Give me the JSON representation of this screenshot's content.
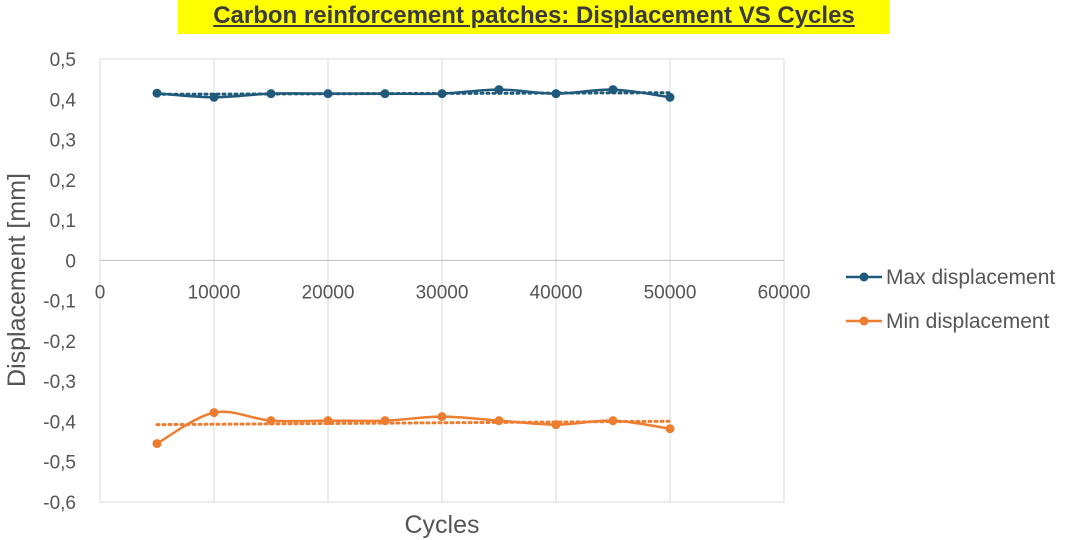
{
  "chart_data": {
    "type": "line",
    "title": "Carbon reinforcement patches: Displacement VS Cycles",
    "xlabel": "Cycles",
    "ylabel": "Displacement [mm]",
    "xlim": [
      0,
      60000
    ],
    "ylim": [
      -0.6,
      0.5
    ],
    "x_ticks": [
      0,
      10000,
      20000,
      30000,
      40000,
      50000,
      60000
    ],
    "y_ticks": [
      0.5,
      0.4,
      0.3,
      0.2,
      0.1,
      0,
      -0.1,
      -0.2,
      -0.3,
      -0.4,
      -0.5,
      -0.6
    ],
    "x_tick_labels": [
      "0",
      "10000",
      "20000",
      "30000",
      "40000",
      "50000",
      "60000"
    ],
    "y_tick_labels": [
      "0,5",
      "0,4",
      "0,3",
      "0,2",
      "0,1",
      "0",
      "-0,1",
      "-0,2",
      "-0,3",
      "-0,4",
      "-0,5",
      "-0,6"
    ],
    "grid": "vertical",
    "legend_position": "right",
    "trendline": "linear, dotted",
    "series": [
      {
        "name": "Max displacement",
        "color": "#1f5a7a",
        "x": [
          5000,
          10000,
          15000,
          20000,
          25000,
          30000,
          35000,
          40000,
          45000,
          50000
        ],
        "y": [
          0.415,
          0.405,
          0.414,
          0.414,
          0.414,
          0.414,
          0.424,
          0.414,
          0.424,
          0.405
        ]
      },
      {
        "name": "Min displacement",
        "color": "#ed7d31",
        "x": [
          5000,
          10000,
          15000,
          20000,
          25000,
          30000,
          35000,
          40000,
          45000,
          50000
        ],
        "y": [
          -0.455,
          -0.378,
          -0.398,
          -0.398,
          -0.398,
          -0.388,
          -0.398,
          -0.408,
          -0.398,
          -0.418
        ]
      }
    ]
  }
}
